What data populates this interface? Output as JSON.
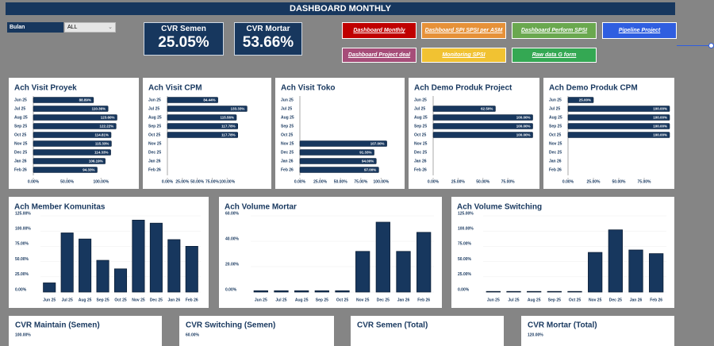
{
  "header": {
    "title": "DASHBOARD MONTHLY"
  },
  "filter": {
    "label": "Bulan",
    "value": "ALL"
  },
  "kpis": [
    {
      "label": "CVR Semen",
      "value": "25.05%"
    },
    {
      "label": "CVR Mortar",
      "value": "53.66%"
    }
  ],
  "buttons": [
    "Dashboard Monthly",
    "Dashboard SPI SPSI per ASM",
    "Dashboard Perform SPSI",
    "Pipeline Project",
    "Dashboard Project deal",
    "Monitoring SPSI",
    "Raw data G form"
  ],
  "chart_data": [
    {
      "type": "hbar",
      "title": "Ach Visit Proyek",
      "color": "#17375e",
      "categories": [
        "Jun 25",
        "Jul 25",
        "Aug 25",
        "Sep 25",
        "Oct 25",
        "Nov 25",
        "Dec 25",
        "Jan 26",
        "Feb 26"
      ],
      "values": [
        88.89,
        110.36,
        123.6,
        122.22,
        114.81,
        115.33,
        114.33,
        106.19,
        94.33
      ],
      "value_labels": [
        "88.89%",
        "110.36%",
        "123.60%",
        "122.22%",
        "114.81%",
        "115.33%",
        "114.33%",
        "106.19%",
        "94.33%"
      ],
      "xlim": [
        0,
        150
      ],
      "xticks": [
        {
          "value": 0,
          "label": "0.00%"
        },
        {
          "value": 50,
          "label": "50.00%"
        },
        {
          "value": 100,
          "label": "100.00%"
        }
      ]
    },
    {
      "type": "hbar",
      "title": "Ach Visit CPM",
      "color": "#17375e",
      "categories": [
        "Jun 25",
        "Jul 25",
        "Aug 25",
        "Sep 25",
        "Oct 25",
        "Nov 25",
        "Dec 25",
        "Jan 26",
        "Feb 26"
      ],
      "values": [
        84.44,
        133.33,
        115.56,
        117.78,
        117.78,
        null,
        null,
        null,
        null
      ],
      "value_labels": [
        "84.44%",
        "133.33%",
        "115.56%",
        "117.78%",
        "117.78%",
        null,
        null,
        null,
        null
      ],
      "xlim": [
        0,
        170
      ],
      "xticks": [
        {
          "value": 0,
          "label": "0.00%"
        },
        {
          "value": 25,
          "label": "25.00%"
        },
        {
          "value": 50,
          "label": "50.00%"
        },
        {
          "value": 75,
          "label": "75.00%"
        },
        {
          "value": 100,
          "label": "100.00%"
        }
      ]
    },
    {
      "type": "hbar",
      "title": "Ach Visit Toko",
      "color": "#17375e",
      "categories": [
        "Jun 25",
        "Jul 25",
        "Aug 25",
        "Sep 25",
        "Oct 25",
        "Nov 25",
        "Dec 25",
        "Jan 26",
        "Feb 26"
      ],
      "values": [
        null,
        null,
        null,
        null,
        null,
        107,
        91.33,
        94,
        97
      ],
      "value_labels": [
        null,
        null,
        null,
        null,
        null,
        "107.00%",
        "91.33%",
        "94.00%",
        "97.00%"
      ],
      "xlim": [
        0,
        125
      ],
      "xticks": [
        {
          "value": 0,
          "label": "0.00%"
        },
        {
          "value": 25,
          "label": "25.00%"
        },
        {
          "value": 50,
          "label": "50.00%"
        },
        {
          "value": 75,
          "label": "75.00%"
        },
        {
          "value": 100,
          "label": "100.00%"
        }
      ]
    },
    {
      "type": "hbar",
      "title": "Ach Demo Produk Project",
      "color": "#17375e",
      "categories": [
        "Jun 25",
        "Jul 25",
        "Aug 25",
        "Sep 25",
        "Oct 25",
        "Nov 25",
        "Dec 25",
        "Jan 26",
        "Feb 26"
      ],
      "values": [
        null,
        62.5,
        100,
        100,
        100,
        null,
        null,
        null,
        null
      ],
      "value_labels": [
        null,
        "62.50%",
        "100.00%",
        "100.00%",
        "100.00%",
        null,
        null,
        null,
        null
      ],
      "xlim": [
        0,
        102
      ],
      "xticks": [
        {
          "value": 0,
          "label": "0.00%"
        },
        {
          "value": 25,
          "label": "25.00%"
        },
        {
          "value": 50,
          "label": "50.00%"
        },
        {
          "value": 75,
          "label": "75.00%"
        }
      ]
    },
    {
      "type": "hbar",
      "title": "Ach Demo Produk CPM",
      "color": "#17375e",
      "categories": [
        "Jun 25",
        "Jul 25",
        "Aug 25",
        "Sep 25",
        "Oct 25",
        "Nov 25",
        "Dec 25",
        "Jan 26",
        "Feb 26"
      ],
      "values": [
        25,
        100,
        100,
        100,
        100,
        null,
        null,
        null,
        null
      ],
      "value_labels": [
        "25.00%",
        "100.00%",
        "100.00%",
        "100.00%",
        "100.00%",
        null,
        null,
        null,
        null
      ],
      "xlim": [
        0,
        100
      ],
      "xticks": [
        {
          "value": 0,
          "label": "0.00%"
        },
        {
          "value": 25,
          "label": "25.00%"
        },
        {
          "value": 50,
          "label": "50.00%"
        },
        {
          "value": 75,
          "label": "75.00%"
        }
      ]
    },
    {
      "type": "bar",
      "title": "Ach Member Komunitas",
      "color": "#17375e",
      "categories": [
        "Jun 25",
        "Jul 25",
        "Aug 25",
        "Sep 25",
        "Oct 25",
        "Nov 25",
        "Dec 25",
        "Jan 26",
        "Feb 26"
      ],
      "values": [
        15,
        97,
        87,
        52,
        38,
        118,
        113,
        86,
        75
      ],
      "ylim": [
        0,
        125
      ],
      "yticks": [
        {
          "value": 0,
          "label": "0.00%"
        },
        {
          "value": 25,
          "label": "25.00%"
        },
        {
          "value": 50,
          "label": "50.00%"
        },
        {
          "value": 75,
          "label": "75.00%"
        },
        {
          "value": 100,
          "label": "100.00%"
        },
        {
          "value": 125,
          "label": "125.00%"
        }
      ]
    },
    {
      "type": "bar",
      "title": "Ach Volume Mortar",
      "color": "#17375e",
      "categories": [
        "Jun 25",
        "Jul 25",
        "Aug 25",
        "Sep 25",
        "Oct 25",
        "Nov 25",
        "Dec 25",
        "Jan 26",
        "Feb 26"
      ],
      "values": [
        1,
        1,
        1,
        1,
        1,
        32,
        55,
        32,
        47
      ],
      "ylim": [
        0,
        60
      ],
      "yticks": [
        {
          "value": 0,
          "label": "0.00%"
        },
        {
          "value": 20,
          "label": "20.00%"
        },
        {
          "value": 40,
          "label": "40.00%"
        },
        {
          "value": 60,
          "label": "60.00%"
        }
      ]
    },
    {
      "type": "bar",
      "title": "Ach Volume Switching",
      "color": "#17375e",
      "categories": [
        "Jun 25",
        "Jul 25",
        "Aug 25",
        "Sep 25",
        "Oct 25",
        "Nov 25",
        "Dec 25",
        "Jan 26",
        "Feb 26"
      ],
      "values": [
        1,
        1,
        1,
        1,
        1,
        65,
        102,
        69,
        63
      ],
      "ylim": [
        0,
        125
      ],
      "yticks": [
        {
          "value": 0,
          "label": "0.00%"
        },
        {
          "value": 25,
          "label": "25.00%"
        },
        {
          "value": 50,
          "label": "50.00%"
        },
        {
          "value": 75,
          "label": "75.00%"
        },
        {
          "value": 100,
          "label": "100.00%"
        },
        {
          "value": 125,
          "label": "125.00%"
        }
      ]
    }
  ],
  "partial_cards": [
    {
      "title": "CVR Maintain (Semen)",
      "label": "100.00%"
    },
    {
      "title": "CVR Switching (Semen)",
      "label": "60.00%"
    },
    {
      "title": "CVR Semen (Total)"
    },
    {
      "title": "CVR Mortar (Total)",
      "label": "120.00%"
    }
  ]
}
